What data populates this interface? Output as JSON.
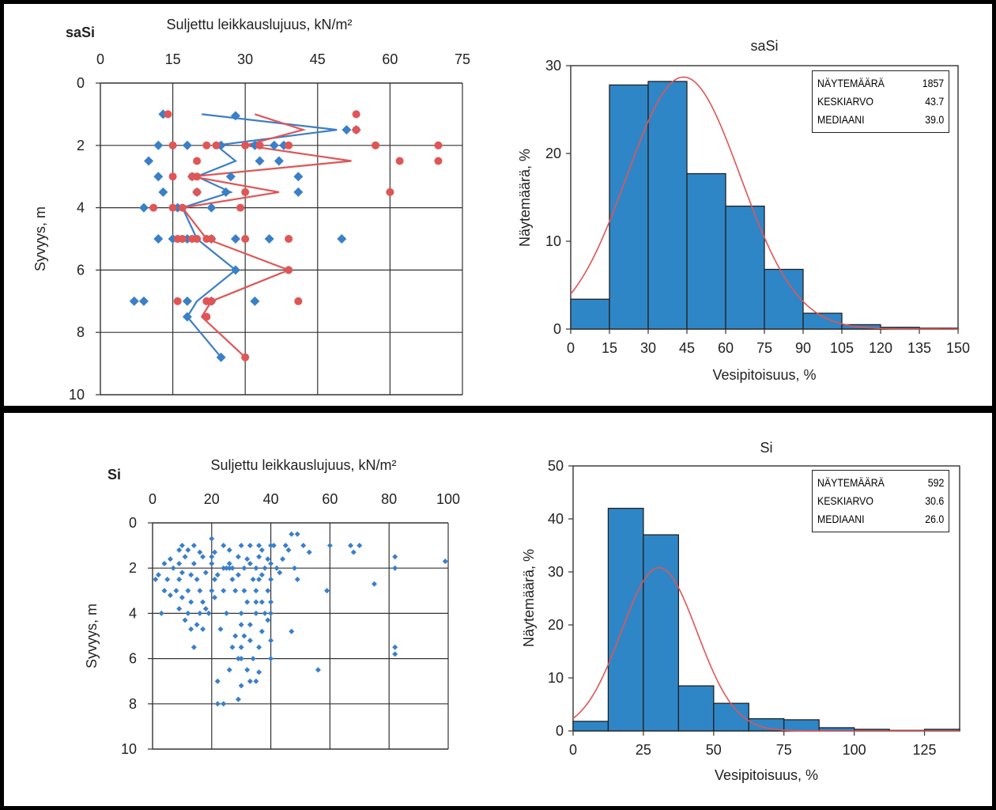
{
  "chart_data": [
    {
      "type": "scatter",
      "id": "top-left",
      "corner_label": "saSi",
      "title": "Suljettu leikkauslujuus, kN/m²",
      "xlabel": "Suljettu leikkauslujuus, kN/m²",
      "ylabel": "Syvyys, m",
      "xlim": [
        0,
        75
      ],
      "ylim": [
        0,
        10
      ],
      "xticks": [
        0,
        15,
        30,
        45,
        60,
        75
      ],
      "yticks": [
        0,
        2,
        4,
        6,
        8,
        10
      ],
      "series": [
        {
          "name": "blue",
          "color": "#3a7fc8",
          "marker": "diamond",
          "points": [
            [
              13,
              1
            ],
            [
              28,
              1.05
            ],
            [
              51,
              1.5
            ],
            [
              53,
              1.5
            ],
            [
              12,
              2
            ],
            [
              18,
              2
            ],
            [
              25,
              2
            ],
            [
              32,
              2
            ],
            [
              36,
              2
            ],
            [
              38,
              2
            ],
            [
              10,
              2.5
            ],
            [
              33,
              2.5
            ],
            [
              37,
              2.5
            ],
            [
              12,
              3
            ],
            [
              19,
              3
            ],
            [
              27,
              3
            ],
            [
              41,
              3
            ],
            [
              13,
              3.5
            ],
            [
              20,
              3.5
            ],
            [
              26,
              3.5
            ],
            [
              41,
              3.5
            ],
            [
              9,
              4
            ],
            [
              16,
              4
            ],
            [
              23,
              4
            ],
            [
              12,
              5
            ],
            [
              15,
              5
            ],
            [
              18,
              5
            ],
            [
              23,
              5
            ],
            [
              28,
              5
            ],
            [
              35,
              5
            ],
            [
              50,
              5
            ],
            [
              28,
              6
            ],
            [
              7,
              7
            ],
            [
              9,
              7
            ],
            [
              18,
              7
            ],
            [
              23,
              7
            ],
            [
              32,
              7
            ],
            [
              18,
              7.5
            ],
            [
              25,
              8.8
            ]
          ]
        },
        {
          "name": "red",
          "color": "#e05555",
          "marker": "circle",
          "points": [
            [
              14,
              1
            ],
            [
              53,
              1
            ],
            [
              53,
              1.5
            ],
            [
              15,
              2
            ],
            [
              22,
              2
            ],
            [
              24,
              2
            ],
            [
              30,
              2
            ],
            [
              33,
              2
            ],
            [
              39,
              2
            ],
            [
              57,
              2
            ],
            [
              70,
              2
            ],
            [
              20,
              2.5
            ],
            [
              62,
              2.5
            ],
            [
              70,
              2.5
            ],
            [
              15,
              3
            ],
            [
              19,
              3
            ],
            [
              20,
              3
            ],
            [
              20,
              3.5
            ],
            [
              30,
              3.5
            ],
            [
              60,
              3.5
            ],
            [
              11,
              4
            ],
            [
              15,
              4
            ],
            [
              17,
              4
            ],
            [
              29,
              4
            ],
            [
              16,
              5
            ],
            [
              17,
              5
            ],
            [
              19,
              5
            ],
            [
              20,
              5
            ],
            [
              22,
              5
            ],
            [
              23,
              5
            ],
            [
              30,
              5
            ],
            [
              39,
              5
            ],
            [
              39,
              6
            ],
            [
              16,
              7
            ],
            [
              22,
              7
            ],
            [
              23,
              7
            ],
            [
              41,
              7
            ],
            [
              22,
              7.5
            ],
            [
              30,
              8.8
            ]
          ]
        }
      ],
      "lines": [
        {
          "name": "blue-line",
          "color": "#3a7fc8",
          "points": [
            [
              21,
              1
            ],
            [
              49,
              1.5
            ],
            [
              24,
              2
            ],
            [
              28,
              2.5
            ],
            [
              20,
              3
            ],
            [
              27,
              3.5
            ],
            [
              17,
              4
            ],
            [
              20,
              5
            ],
            [
              28,
              6
            ],
            [
              20,
              7
            ],
            [
              18,
              7.5
            ],
            [
              25,
              8.8
            ]
          ]
        },
        {
          "name": "red-line",
          "color": "#e05555",
          "points": [
            [
              32,
              1
            ],
            [
              42,
              1.5
            ],
            [
              30,
              2
            ],
            [
              52,
              2.5
            ],
            [
              19,
              3
            ],
            [
              37,
              3.5
            ],
            [
              17,
              4
            ],
            [
              22,
              5
            ],
            [
              39,
              6
            ],
            [
              23,
              7
            ],
            [
              21,
              7.5
            ],
            [
              30,
              8.8
            ]
          ]
        }
      ]
    },
    {
      "type": "bar",
      "id": "top-right",
      "title": "saSi",
      "xlabel": "Vesipitoisuus, %",
      "ylabel": "Näytemäärä, %",
      "xlim": [
        0,
        150
      ],
      "ylim": [
        0,
        30
      ],
      "xticks": [
        0,
        15,
        30,
        45,
        60,
        75,
        90,
        105,
        120,
        135,
        150
      ],
      "yticks": [
        0,
        10,
        20,
        30
      ],
      "bin_edges": [
        0,
        15,
        30,
        45,
        60,
        75,
        90,
        105,
        120,
        135,
        150
      ],
      "values": [
        3.4,
        27.8,
        28.2,
        17.7,
        14.0,
        6.8,
        1.8,
        0.5,
        0.2,
        0.1
      ],
      "fit_curve": {
        "color": "#e05555",
        "mean": 43.7,
        "sd": 22.0,
        "peak": 28.7
      },
      "stats": [
        {
          "label": "NÄYTEMÄÄRÄ",
          "value": "1857"
        },
        {
          "label": "KESKIARVO",
          "value": "43.7"
        },
        {
          "label": "MEDIAANI",
          "value": "39.0"
        }
      ]
    },
    {
      "type": "scatter",
      "id": "bottom-left",
      "corner_label": "Si",
      "title": "Suljettu leikkauslujuus, kN/m²",
      "xlabel": "Suljettu leikkauslujuus, kN/m²",
      "ylabel": "Syvyys, m",
      "xlim": [
        0,
        100
      ],
      "ylim": [
        0,
        10
      ],
      "xticks": [
        0,
        20,
        40,
        60,
        80,
        100
      ],
      "yticks": [
        0,
        2,
        4,
        6,
        8,
        10
      ],
      "series": [
        {
          "name": "blue",
          "color": "#3a7fc8",
          "marker": "diamond-small",
          "points": [
            [
              47,
              0.5
            ],
            [
              49,
              0.5
            ],
            [
              20,
              0.7
            ],
            [
              45,
              1
            ],
            [
              51,
              1
            ],
            [
              60,
              1
            ],
            [
              67,
              1
            ],
            [
              70,
              1
            ],
            [
              10,
              1
            ],
            [
              14,
              1
            ],
            [
              24,
              1
            ],
            [
              30,
              1
            ],
            [
              33,
              1
            ],
            [
              36,
              1
            ],
            [
              40,
              1
            ],
            [
              41,
              1
            ],
            [
              9,
              1.2
            ],
            [
              12,
              1.2
            ],
            [
              16,
              1.3
            ],
            [
              21,
              1.3
            ],
            [
              26,
              1.2
            ],
            [
              37,
              1.2
            ],
            [
              46,
              1.2
            ],
            [
              53,
              1.3
            ],
            [
              68,
              1.3
            ],
            [
              6,
              1.6
            ],
            [
              11,
              1.5
            ],
            [
              17,
              1.5
            ],
            [
              20,
              1.5
            ],
            [
              29,
              1.5
            ],
            [
              32,
              1.6
            ],
            [
              36,
              1.5
            ],
            [
              39,
              1.6
            ],
            [
              44,
              1.6
            ],
            [
              82,
              1.5
            ],
            [
              4,
              1.8
            ],
            [
              9,
              1.8
            ],
            [
              14,
              1.8
            ],
            [
              20,
              1.8
            ],
            [
              26,
              1.8
            ],
            [
              33,
              1.8
            ],
            [
              40,
              1.8
            ],
            [
              99,
              1.7
            ],
            [
              7,
              2
            ],
            [
              24,
              2
            ],
            [
              25,
              2
            ],
            [
              26,
              2
            ],
            [
              27,
              2
            ],
            [
              31,
              2
            ],
            [
              35,
              2
            ],
            [
              38,
              2
            ],
            [
              42,
              2
            ],
            [
              48,
              2
            ],
            [
              82,
              2
            ],
            [
              2,
              2.3
            ],
            [
              10,
              2.2
            ],
            [
              13,
              2.3
            ],
            [
              18,
              2.2
            ],
            [
              22,
              2.3
            ],
            [
              29,
              2.3
            ],
            [
              37,
              2.3
            ],
            [
              43,
              2.2
            ],
            [
              1,
              2.5
            ],
            [
              5,
              2.5
            ],
            [
              9,
              2.5
            ],
            [
              15,
              2.5
            ],
            [
              21,
              2.5
            ],
            [
              27,
              2.5
            ],
            [
              34,
              2.5
            ],
            [
              36,
              2.5
            ],
            [
              40,
              2.5
            ],
            [
              49,
              2.5
            ],
            [
              75,
              2.7
            ],
            [
              4,
              3
            ],
            [
              8,
              3
            ],
            [
              12,
              3
            ],
            [
              16,
              3
            ],
            [
              20,
              3
            ],
            [
              24,
              3
            ],
            [
              28,
              3
            ],
            [
              31,
              3
            ],
            [
              35,
              3
            ],
            [
              39,
              3
            ],
            [
              59,
              3
            ],
            [
              6,
              3.2
            ],
            [
              10,
              3.3
            ],
            [
              13,
              3.5
            ],
            [
              17,
              3.5
            ],
            [
              21,
              3.3
            ],
            [
              32,
              3.5
            ],
            [
              35,
              3.5
            ],
            [
              37,
              3.5
            ],
            [
              40,
              3.5
            ],
            [
              18,
              3.8
            ],
            [
              9,
              3.8
            ],
            [
              3,
              4
            ],
            [
              12,
              4
            ],
            [
              16,
              4
            ],
            [
              19,
              4
            ],
            [
              25,
              4
            ],
            [
              30,
              4
            ],
            [
              35,
              4
            ],
            [
              38,
              4
            ],
            [
              40,
              4
            ],
            [
              11,
              4.3
            ],
            [
              15,
              4.5
            ],
            [
              30,
              4.5
            ],
            [
              39,
              4.3
            ],
            [
              13,
              4.7
            ],
            [
              17,
              4.7
            ],
            [
              23,
              4.7
            ],
            [
              33,
              4.5
            ],
            [
              37,
              4.8
            ],
            [
              47,
              4.8
            ],
            [
              28,
              5
            ],
            [
              31,
              5
            ],
            [
              33,
              5.2
            ],
            [
              40,
              5.2
            ],
            [
              27,
              5.5
            ],
            [
              30,
              5.5
            ],
            [
              36,
              5.5
            ],
            [
              14,
              5.5
            ],
            [
              82,
              5.5
            ],
            [
              82,
              5.8
            ],
            [
              29,
              6
            ],
            [
              30,
              6
            ],
            [
              34,
              6
            ],
            [
              40,
              6
            ],
            [
              56,
              6.5
            ],
            [
              26,
              6.5
            ],
            [
              32,
              6.5
            ],
            [
              36,
              6.6
            ],
            [
              22,
              7
            ],
            [
              33,
              7
            ],
            [
              35,
              7
            ],
            [
              30,
              7.2
            ],
            [
              29,
              7.8
            ],
            [
              22,
              8
            ],
            [
              24,
              8
            ]
          ]
        }
      ]
    },
    {
      "type": "bar",
      "id": "bottom-right",
      "title": "Si",
      "xlabel": "Vesipitoisuus, %",
      "ylabel": "Näytemäärä, %",
      "xlim": [
        0,
        137.5
      ],
      "ylim": [
        0,
        50
      ],
      "xticks": [
        0,
        25,
        50,
        75,
        100,
        125
      ],
      "yticks": [
        0,
        10,
        20,
        30,
        40,
        50
      ],
      "bin_edges": [
        0,
        12.5,
        25,
        37.5,
        50,
        62.5,
        75,
        87.5,
        100,
        112.5,
        125,
        137.5
      ],
      "values": [
        1.8,
        42,
        37,
        8.5,
        5.2,
        2.3,
        2.1,
        0.6,
        0.3,
        0.1,
        0.3
      ],
      "fit_curve": {
        "color": "#e05555",
        "mean": 30.6,
        "sd": 13.5,
        "peak": 30.8
      },
      "stats": [
        {
          "label": "NÄYTEMÄÄRÄ",
          "value": "592"
        },
        {
          "label": "KESKIARVO",
          "value": "30.6"
        },
        {
          "label": "MEDIAANI",
          "value": "26.0"
        }
      ]
    }
  ]
}
